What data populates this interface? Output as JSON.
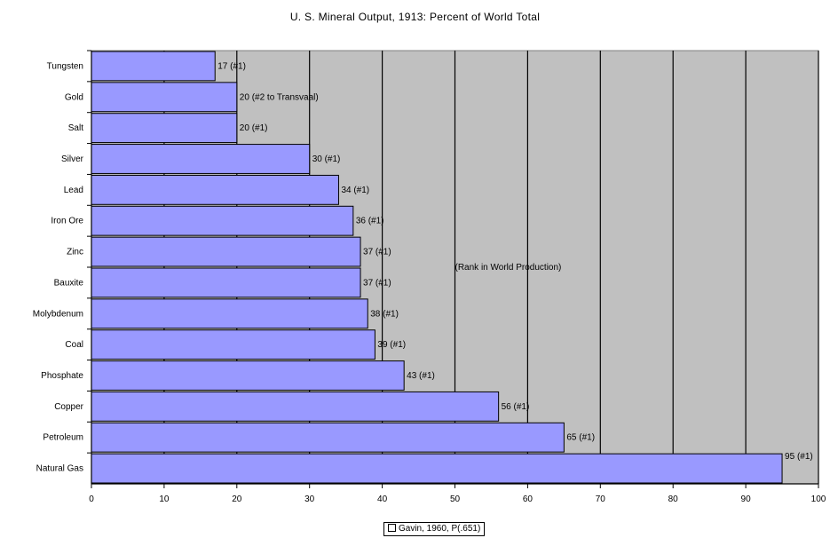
{
  "chart_data": {
    "type": "bar",
    "orientation": "horizontal",
    "title": "U. S. Mineral Output, 1913: Percent of World Total",
    "categories": [
      "Tungsten",
      "Gold",
      "Salt",
      "Silver",
      "Lead",
      "Iron Ore",
      "Zinc",
      "Bauxite",
      "Molybdenum",
      "Coal",
      "Phosphate",
      "Copper",
      "Petroleum",
      "Natural Gas"
    ],
    "values": [
      17,
      20,
      20,
      30,
      34,
      36,
      37,
      37,
      38,
      39,
      43,
      56,
      65,
      95
    ],
    "data_labels": [
      "17 (#1)",
      "20 (#2 to Transvaal)",
      "20 (#1)",
      "30 (#1)",
      "34 (#1)",
      "36 (#1)",
      "37 (#1)",
      "37 (#1)",
      "38 (#1)",
      "39 (#1)",
      "43 (#1)",
      "56 (#1)",
      "65 (#1)",
      "95 (#1)"
    ],
    "annotation": "(Rank in World Production)",
    "xlim": [
      0,
      100
    ],
    "xticks": [
      0,
      10,
      20,
      30,
      40,
      50,
      60,
      70,
      80,
      90,
      100
    ],
    "grid": true,
    "legend": {
      "placement": "bottom",
      "label": "Gavin, 1960, P(.651)"
    },
    "colors": {
      "bar": "#9999ff",
      "plot_background": "#c0c0c0",
      "bar_border": "#000000",
      "grid": "#000000"
    }
  }
}
